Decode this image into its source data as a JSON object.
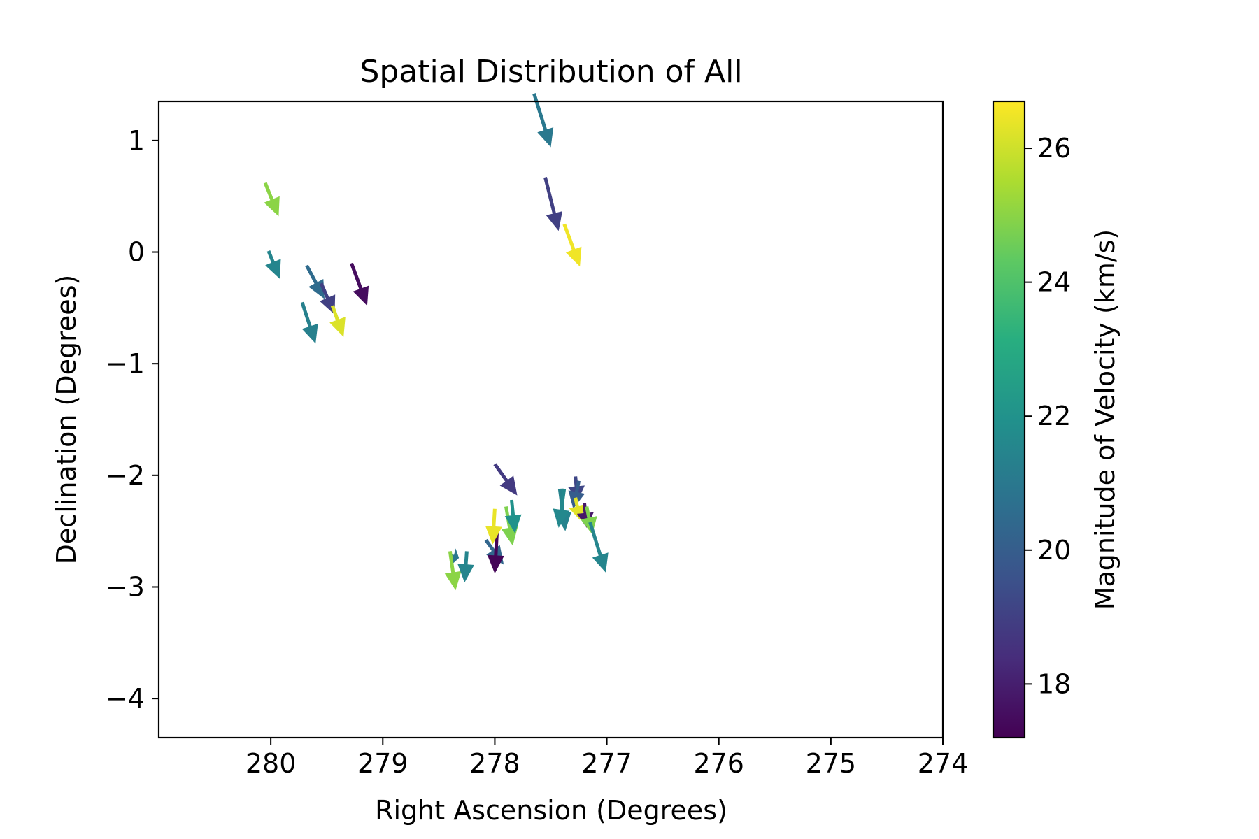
{
  "chart_data": {
    "type": "quiver",
    "title": "Spatial Distribution of All",
    "xlabel": "Right Ascension (Degrees)",
    "ylabel": "Declination (Degrees)",
    "xlim": [
      281.0,
      274.0
    ],
    "ylim": [
      -4.35,
      1.35
    ],
    "x_ticks": [
      280,
      279,
      278,
      277,
      276,
      275,
      274
    ],
    "y_ticks": [
      1,
      0,
      -1,
      -2,
      -3,
      -4
    ],
    "grid": false,
    "colorbar": {
      "label": "Magnitude of Velocity (km/s)",
      "colormap": "viridis",
      "range": [
        17.2,
        26.7
      ],
      "ticks": [
        18,
        20,
        22,
        24,
        26
      ]
    },
    "arrows": [
      {
        "x": 280.05,
        "y": 0.62,
        "dx": -0.12,
        "dy": -0.3,
        "v": 25.0
      },
      {
        "x": 280.02,
        "y": 0.01,
        "dx": -0.1,
        "dy": -0.25,
        "v": 21.5
      },
      {
        "x": 279.68,
        "y": -0.12,
        "dx": -0.16,
        "dy": -0.3,
        "v": 20.5
      },
      {
        "x": 279.55,
        "y": -0.28,
        "dx": -0.12,
        "dy": -0.28,
        "v": 19.0
      },
      {
        "x": 279.45,
        "y": -0.48,
        "dx": -0.1,
        "dy": -0.28,
        "v": 26.2
      },
      {
        "x": 279.28,
        "y": -0.1,
        "dx": -0.14,
        "dy": -0.38,
        "v": 17.5
      },
      {
        "x": 279.72,
        "y": -0.45,
        "dx": -0.12,
        "dy": -0.37,
        "v": 21.3
      },
      {
        "x": 277.65,
        "y": 1.42,
        "dx": -0.15,
        "dy": -0.48,
        "v": 21.0
      },
      {
        "x": 277.55,
        "y": 0.67,
        "dx": -0.12,
        "dy": -0.48,
        "v": 19.0
      },
      {
        "x": 277.38,
        "y": 0.25,
        "dx": -0.14,
        "dy": -0.38,
        "v": 26.5
      },
      {
        "x": 278.0,
        "y": -1.9,
        "dx": -0.2,
        "dy": -0.28,
        "v": 18.8
      },
      {
        "x": 278.4,
        "y": -2.72,
        "dx": -0.08,
        "dy": -0.02,
        "v": 21.0
      },
      {
        "x": 278.4,
        "y": -2.68,
        "dx": -0.05,
        "dy": -0.35,
        "v": 25.0
      },
      {
        "x": 278.25,
        "y": -2.68,
        "dx": 0.02,
        "dy": -0.28,
        "v": 21.5
      },
      {
        "x": 278.08,
        "y": -2.58,
        "dx": -0.16,
        "dy": -0.22,
        "v": 20.3
      },
      {
        "x": 277.98,
        "y": -2.5,
        "dx": 0.02,
        "dy": -0.38,
        "v": 17.3
      },
      {
        "x": 278.0,
        "y": -2.3,
        "dx": 0.02,
        "dy": -0.32,
        "v": 26.4
      },
      {
        "x": 277.9,
        "y": -2.28,
        "dx": -0.06,
        "dy": -0.35,
        "v": 24.8
      },
      {
        "x": 277.85,
        "y": -2.22,
        "dx": -0.03,
        "dy": -0.3,
        "v": 22.0
      },
      {
        "x": 277.42,
        "y": -2.12,
        "dx": -0.05,
        "dy": -0.38,
        "v": 21.4
      },
      {
        "x": 277.38,
        "y": -2.12,
        "dx": 0.05,
        "dy": -0.35,
        "v": 21.6
      },
      {
        "x": 277.28,
        "y": -2.01,
        "dx": -0.02,
        "dy": -0.22,
        "v": 19.2
      },
      {
        "x": 277.25,
        "y": -2.05,
        "dx": 0.05,
        "dy": -0.25,
        "v": 20.0
      },
      {
        "x": 277.28,
        "y": -2.2,
        "dx": -0.04,
        "dy": -0.2,
        "v": 26.3
      },
      {
        "x": 277.2,
        "y": -2.25,
        "dx": -0.02,
        "dy": -0.22,
        "v": 17.8
      },
      {
        "x": 277.18,
        "y": -2.28,
        "dx": -0.05,
        "dy": -0.25,
        "v": 24.8
      },
      {
        "x": 277.15,
        "y": -2.42,
        "dx": -0.14,
        "dy": -0.45,
        "v": 21.5
      }
    ]
  }
}
